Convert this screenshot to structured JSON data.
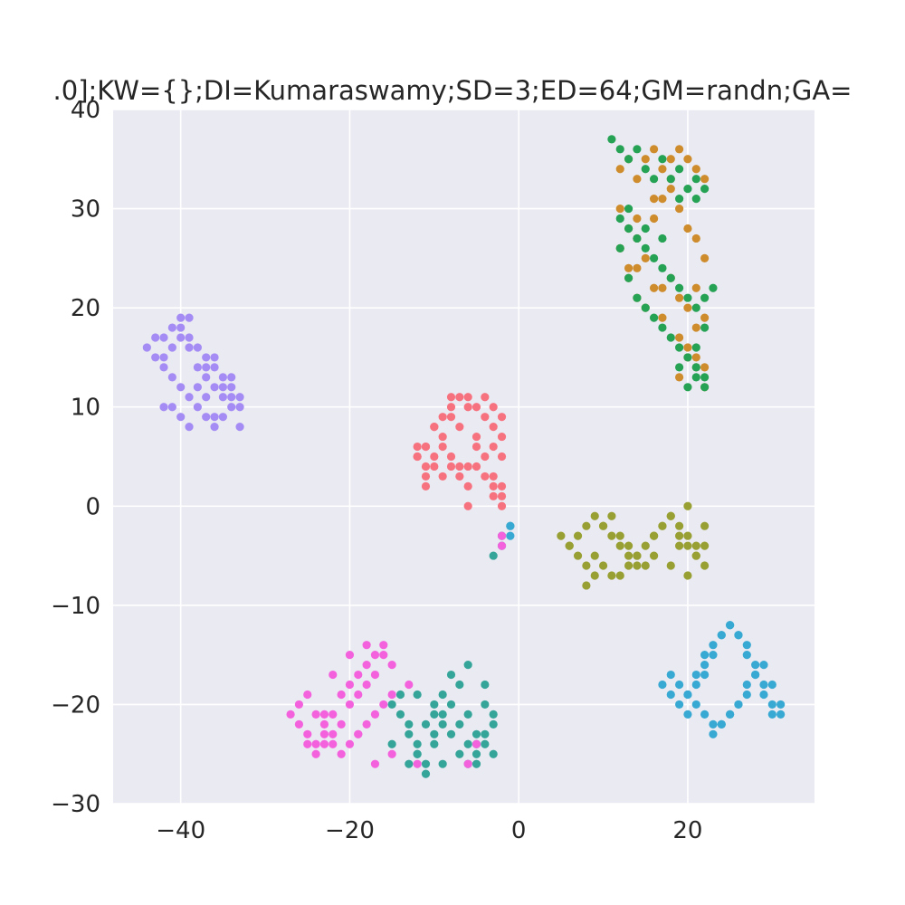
{
  "chart_data": {
    "type": "scatter",
    "title": ".0];KW={};DI=Kumaraswamy;SD=3;ED=64;GM=randn;GA=",
    "xlabel": "",
    "ylabel": "",
    "xlim": [
      -48,
      35
    ],
    "ylim": [
      -30,
      40
    ],
    "grid": true,
    "legend": "none",
    "xticks": [
      -40,
      -20,
      0,
      20
    ],
    "xtick_labels": [
      "−40",
      "−20",
      "0",
      "20"
    ],
    "yticks": [
      40,
      30,
      20,
      10,
      0,
      -10,
      -20,
      -30
    ],
    "ytick_labels": [
      "40",
      "30",
      "20",
      "10",
      "0",
      "−10",
      "−20",
      "−30"
    ],
    "series": [
      {
        "color": "#f7727f",
        "x": [
          -12,
          -11,
          -10,
          -9,
          -8,
          -7,
          -6,
          -5,
          -4,
          -3,
          -2,
          -2,
          -3,
          -4,
          -6,
          -8,
          -10,
          -11,
          -12,
          -11,
          -9,
          -7,
          -5,
          -3,
          -2,
          -2,
          -3,
          -5,
          -7,
          -9,
          -10,
          -8,
          -6,
          -4,
          -3,
          -2,
          -11,
          -12,
          -9,
          -7,
          -5,
          -2,
          -3,
          -4,
          -6,
          -8,
          -10,
          -11,
          -8,
          -6
        ],
        "y": [
          5,
          6,
          8,
          9,
          10,
          11,
          11,
          10,
          11,
          10,
          9,
          7,
          6,
          5,
          4,
          5,
          4,
          3,
          6,
          2,
          3,
          4,
          6,
          3,
          1,
          0,
          2,
          7,
          8,
          7,
          5,
          11,
          10,
          9,
          8,
          5,
          4,
          5,
          6,
          3,
          4,
          2,
          1,
          3,
          0,
          9,
          8,
          6,
          4,
          2
        ]
      },
      {
        "color": "#ce8c2c",
        "x": [
          12,
          13,
          14,
          15,
          16,
          17,
          18,
          19,
          20,
          21,
          22,
          12,
          13,
          14,
          16,
          17,
          18,
          19,
          20,
          21,
          22,
          13,
          14,
          15,
          17,
          18,
          19,
          20,
          21,
          22,
          12,
          13,
          14,
          15,
          16,
          17,
          19,
          20,
          21,
          22,
          20,
          21,
          22,
          19,
          21,
          14,
          16,
          18
        ],
        "y": [
          34,
          35,
          33,
          35,
          36,
          34,
          35,
          36,
          35,
          34,
          33,
          30,
          28,
          27,
          29,
          31,
          32,
          30,
          28,
          27,
          25,
          23,
          24,
          25,
          22,
          23,
          21,
          20,
          22,
          19,
          26,
          24,
          21,
          20,
          22,
          19,
          17,
          15,
          14,
          12,
          16,
          18,
          14,
          13,
          15,
          29,
          31,
          33
        ]
      },
      {
        "color": "#25a254",
        "x": [
          11,
          12,
          13,
          14,
          15,
          16,
          17,
          18,
          19,
          20,
          21,
          22,
          12,
          13,
          14,
          15,
          16,
          17,
          18,
          19,
          20,
          21,
          22,
          23,
          12,
          13,
          14,
          15,
          16,
          17,
          18,
          19,
          20,
          21,
          22,
          20,
          21,
          22,
          19,
          21,
          22,
          13,
          15,
          17,
          19,
          21
        ],
        "y": [
          37,
          36,
          35,
          36,
          34,
          33,
          35,
          33,
          34,
          32,
          31,
          32,
          29,
          28,
          27,
          26,
          25,
          24,
          23,
          22,
          21,
          20,
          21,
          22,
          26,
          23,
          21,
          20,
          19,
          18,
          17,
          16,
          15,
          14,
          13,
          12,
          16,
          18,
          14,
          13,
          12,
          30,
          28,
          27,
          31,
          33
        ]
      },
      {
        "color": "#98a033",
        "x": [
          5,
          6,
          7,
          8,
          9,
          10,
          11,
          12,
          13,
          14,
          15,
          16,
          17,
          18,
          19,
          20,
          21,
          22,
          6,
          7,
          8,
          9,
          10,
          11,
          12,
          13,
          14,
          15,
          16,
          17,
          18,
          19,
          20,
          21,
          22,
          9,
          10,
          11,
          12,
          13,
          14,
          16,
          18,
          20,
          21,
          22,
          8,
          19,
          20
        ],
        "y": [
          -3,
          -4,
          -5,
          -6,
          -7,
          -2,
          -1,
          -3,
          -4,
          -5,
          -6,
          -3,
          -2,
          -1,
          -3,
          -4,
          -5,
          -6,
          -4,
          -3,
          -2,
          -5,
          -6,
          -7,
          -7,
          -6,
          -5,
          -4,
          -3,
          -2,
          -1,
          -2,
          -3,
          -4,
          -2,
          -1,
          -2,
          -3,
          -4,
          -5,
          -6,
          -5,
          -6,
          -7,
          -5,
          -4,
          -8,
          -4,
          0
        ]
      },
      {
        "color": "#35a59a",
        "x": [
          -15,
          -14,
          -13,
          -12,
          -11,
          -10,
          -9,
          -8,
          -7,
          -6,
          -5,
          -4,
          -3,
          -14,
          -13,
          -12,
          -11,
          -10,
          -9,
          -8,
          -7,
          -6,
          -5,
          -4,
          -3,
          -13,
          -12,
          -11,
          -10,
          -9,
          -8,
          -7,
          -6,
          -5,
          -4,
          -3,
          -15,
          -12,
          -9,
          -6,
          -4,
          -3,
          -2,
          -2,
          -1,
          -5,
          -10
        ],
        "y": [
          -20,
          -21,
          -23,
          -24,
          -22,
          -21,
          -19,
          -17,
          -18,
          -21,
          -23,
          -24,
          -25,
          -19,
          -22,
          -25,
          -26,
          -23,
          -21,
          -20,
          -22,
          -24,
          -25,
          -23,
          -21,
          -26,
          -25,
          -27,
          -24,
          -22,
          -23,
          -25,
          -26,
          -24,
          -20,
          -22,
          -24,
          -19,
          -26,
          -16,
          -18,
          -5,
          -4,
          -3,
          -2,
          -26,
          -20
        ]
      },
      {
        "color": "#38a9d2",
        "x": [
          17,
          18,
          19,
          20,
          21,
          22,
          23,
          24,
          25,
          26,
          27,
          28,
          29,
          30,
          31,
          18,
          19,
          20,
          21,
          22,
          23,
          24,
          25,
          26,
          27,
          28,
          29,
          30,
          31,
          22,
          23,
          24,
          25,
          26,
          27,
          28,
          29,
          30,
          24,
          25,
          26,
          27,
          23,
          20,
          21,
          22,
          -1,
          -1
        ],
        "y": [
          -18,
          -19,
          -20,
          -19,
          -18,
          -17,
          -15,
          -13,
          -12,
          -13,
          -14,
          -16,
          -18,
          -20,
          -21,
          -17,
          -18,
          -19,
          -20,
          -21,
          -22,
          -22,
          -21,
          -20,
          -19,
          -17,
          -16,
          -18,
          -20,
          -15,
          -14,
          -13,
          -12,
          -13,
          -15,
          -17,
          -19,
          -21,
          -22,
          -21,
          -20,
          -18,
          -23,
          -21,
          -17,
          -16,
          -2,
          -3
        ]
      },
      {
        "color": "#a48cf4",
        "x": [
          -44,
          -43,
          -42,
          -41,
          -40,
          -39,
          -38,
          -37,
          -36,
          -35,
          -34,
          -33,
          -43,
          -42,
          -41,
          -40,
          -39,
          -38,
          -37,
          -36,
          -35,
          -34,
          -33,
          -42,
          -41,
          -40,
          -39,
          -38,
          -37,
          -36,
          -35,
          -34,
          -40,
          -41,
          -39,
          -38,
          -37,
          -36,
          -35,
          -34,
          -33,
          -42,
          -40,
          -39,
          -37,
          -36
        ],
        "y": [
          16,
          17,
          15,
          18,
          19,
          17,
          16,
          15,
          14,
          13,
          12,
          11,
          15,
          14,
          13,
          12,
          11,
          10,
          9,
          8,
          9,
          10,
          8,
          17,
          16,
          18,
          19,
          14,
          13,
          12,
          11,
          13,
          9,
          10,
          8,
          12,
          14,
          15,
          12,
          11,
          10,
          10,
          17,
          16,
          11,
          9
        ]
      },
      {
        "color": "#f461dd",
        "x": [
          -27,
          -26,
          -25,
          -24,
          -23,
          -22,
          -21,
          -20,
          -19,
          -18,
          -17,
          -16,
          -15,
          -26,
          -25,
          -24,
          -23,
          -22,
          -21,
          -20,
          -19,
          -18,
          -17,
          -16,
          -15,
          -24,
          -23,
          -22,
          -21,
          -20,
          -19,
          -18,
          -17,
          -16,
          -22,
          -20,
          -18,
          -17,
          -15,
          -13,
          -12,
          -6,
          -5,
          -2,
          -2,
          -25,
          -23,
          -19
        ],
        "y": [
          -21,
          -22,
          -23,
          -24,
          -22,
          -21,
          -19,
          -18,
          -17,
          -16,
          -15,
          -14,
          -16,
          -20,
          -19,
          -21,
          -23,
          -24,
          -25,
          -24,
          -23,
          -22,
          -21,
          -20,
          -19,
          -25,
          -24,
          -23,
          -22,
          -20,
          -19,
          -18,
          -17,
          -15,
          -17,
          -15,
          -14,
          -26,
          -25,
          -18,
          -26,
          -26,
          -24,
          -4,
          -3,
          -24,
          -21,
          -23
        ]
      }
    ]
  }
}
